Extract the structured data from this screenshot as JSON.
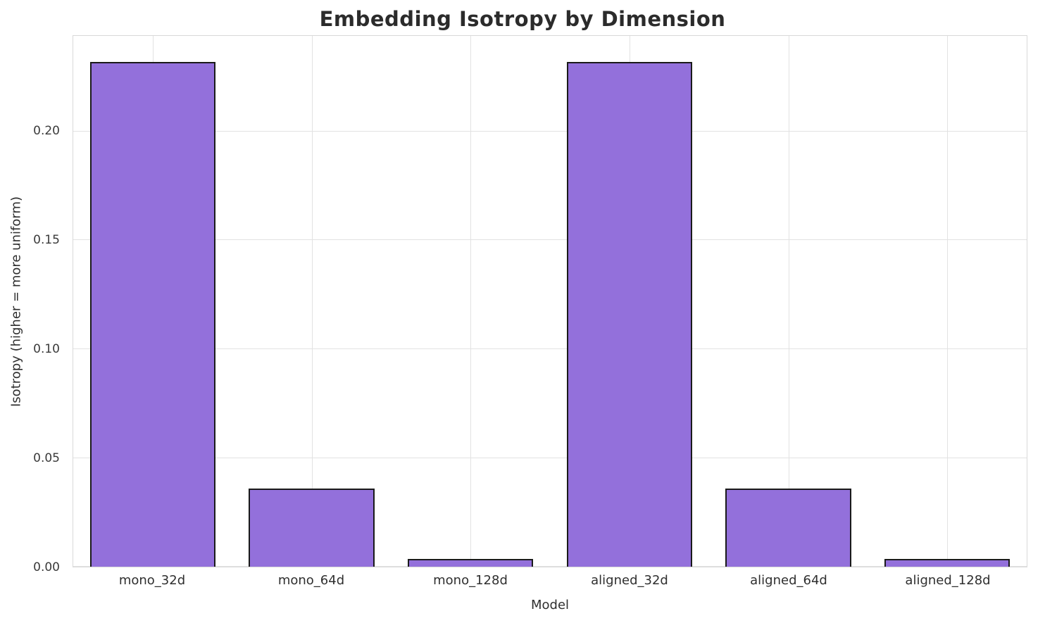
{
  "chart_data": {
    "type": "bar",
    "title": "Embedding Isotropy by Dimension",
    "xlabel": "Model",
    "ylabel": "Isotropy (higher = more uniform)",
    "categories": [
      "mono_32d",
      "mono_64d",
      "mono_128d",
      "aligned_32d",
      "aligned_64d",
      "aligned_128d"
    ],
    "values": [
      0.232,
      0.036,
      0.0035,
      0.232,
      0.036,
      0.0035
    ],
    "ylim": [
      0,
      0.244
    ],
    "yticks": [
      0.0,
      0.05,
      0.1,
      0.15,
      0.2
    ],
    "ytick_labels": [
      "0.00",
      "0.05",
      "0.10",
      "0.15",
      "0.20"
    ],
    "grid": true,
    "legend_position": "none",
    "bar_color": "#9370db",
    "bar_edge_color": "#1a1a1a"
  }
}
